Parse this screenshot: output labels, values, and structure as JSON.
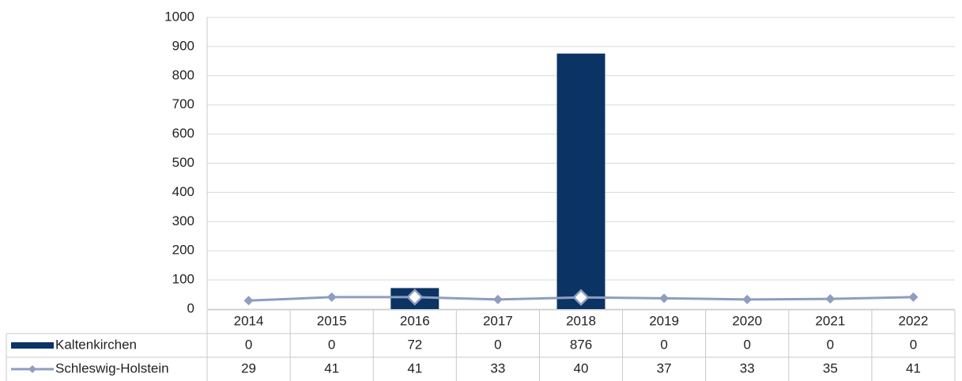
{
  "chart_data": {
    "type": "bar",
    "categories": [
      "2014",
      "2015",
      "2016",
      "2017",
      "2018",
      "2019",
      "2020",
      "2021",
      "2022"
    ],
    "series": [
      {
        "name": "Kaltenkirchen",
        "type": "bar",
        "color": "#0b3364",
        "values": [
          0,
          0,
          72,
          0,
          876,
          0,
          0,
          0,
          0
        ]
      },
      {
        "name": "Schleswig-Holstein",
        "type": "line",
        "color": "#8e9dc0",
        "values": [
          29,
          41,
          41,
          33,
          40,
          37,
          33,
          35,
          41
        ]
      }
    ],
    "ylim": [
      0,
      1000
    ],
    "yticks": [
      0,
      100,
      200,
      300,
      400,
      500,
      600,
      700,
      800,
      900,
      1000
    ],
    "grid": true
  }
}
